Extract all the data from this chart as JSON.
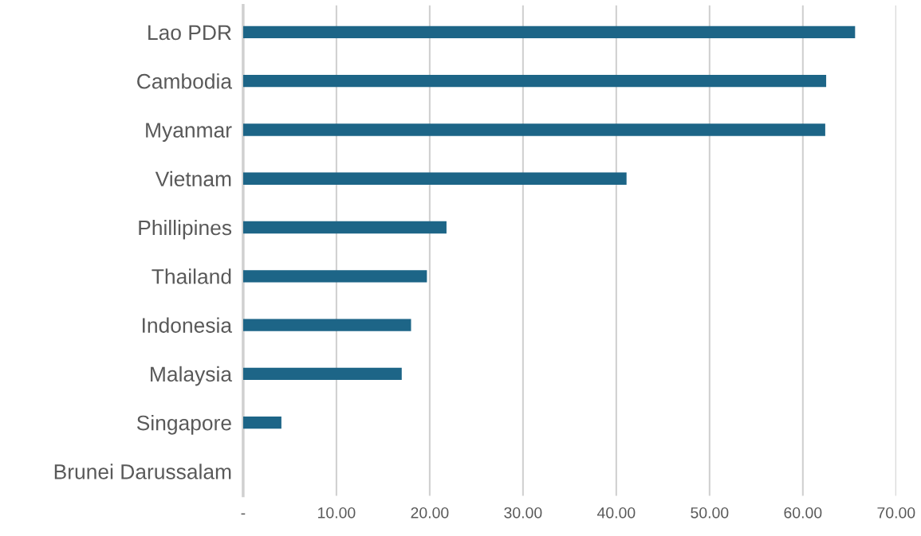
{
  "chart_data": {
    "type": "bar",
    "orientation": "horizontal",
    "categories": [
      "Lao PDR",
      "Cambodia",
      "Myanmar",
      "Vietnam",
      "Phillipines",
      "Thailand",
      "Indonesia",
      "Malaysia",
      "Singapore",
      "Brunei Darussalam"
    ],
    "values": [
      65.6,
      62.5,
      62.4,
      41.1,
      21.8,
      19.7,
      18.0,
      17.0,
      4.1,
      0
    ],
    "color": "#1d6587",
    "xlim": [
      0,
      70
    ],
    "xticks": [
      {
        "value": 0,
        "label": "-"
      },
      {
        "value": 10,
        "label": "10.00"
      },
      {
        "value": 20,
        "label": "20.00"
      },
      {
        "value": 30,
        "label": "30.00"
      },
      {
        "value": 40,
        "label": "40.00"
      },
      {
        "value": 50,
        "label": "50.00"
      },
      {
        "value": 60,
        "label": "60.00"
      },
      {
        "value": 70,
        "label": "70.00"
      }
    ],
    "grid": "x",
    "legend": false
  }
}
